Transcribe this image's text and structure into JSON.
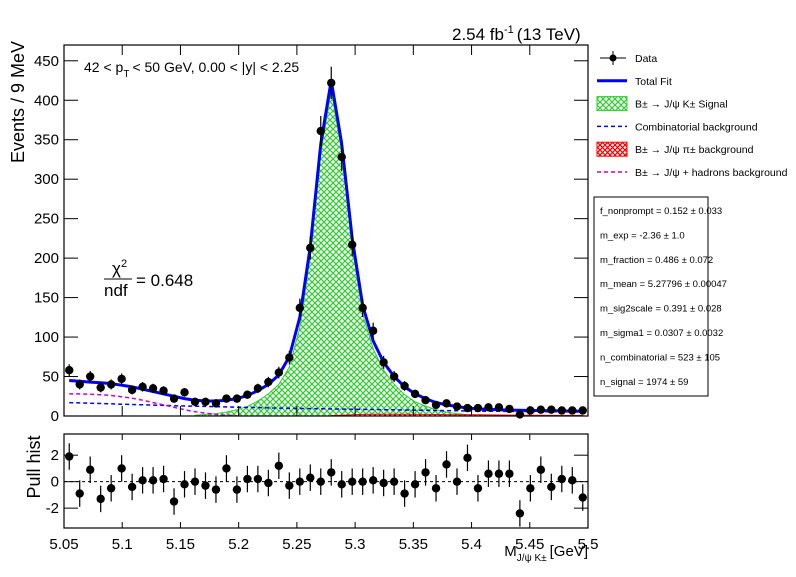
{
  "header": {
    "lumi": "2.54 fb",
    "lumi_exp": "-1",
    "energy": "(13 TeV)"
  },
  "chart_data": [
    {
      "type": "scatter",
      "ylabel": "Events / 9 MeV",
      "selection_label": {
        "text": "42 < p",
        "sub": "T",
        "rest": "< 50 GeV, 0.00 < |y| < 2.25"
      },
      "chi2_label": {
        "symbol": "χ",
        "exp": "2",
        "denominator": "ndf",
        "value": "= 0.648"
      },
      "xlim": [
        5.05,
        5.5
      ],
      "xticks": [
        5.05,
        5.1,
        5.15,
        5.2,
        5.25,
        5.3,
        5.35,
        5.4,
        5.45,
        5.5
      ],
      "ylim": [
        0,
        470
      ],
      "yticks": [
        0,
        50,
        100,
        150,
        200,
        250,
        300,
        350,
        400,
        450
      ],
      "x": [
        5.0545,
        5.0635,
        5.0725,
        5.0815,
        5.0905,
        5.0995,
        5.1085,
        5.1175,
        5.1265,
        5.1355,
        5.1445,
        5.1535,
        5.1625,
        5.1715,
        5.1805,
        5.1895,
        5.1985,
        5.2075,
        5.2165,
        5.2255,
        5.2345,
        5.2435,
        5.2525,
        5.2615,
        5.2705,
        5.2795,
        5.2885,
        5.2975,
        5.3065,
        5.3155,
        5.3245,
        5.3335,
        5.3425,
        5.3515,
        5.3605,
        5.3695,
        5.3785,
        5.3875,
        5.3965,
        5.4055,
        5.4145,
        5.4235,
        5.4325,
        5.4415,
        5.4505,
        5.4595,
        5.4685,
        5.4775,
        5.4865,
        5.4955
      ],
      "series": [
        {
          "name": "Data",
          "style": "points",
          "color": "#000000",
          "values": [
            58,
            40,
            50,
            36,
            40,
            47,
            33,
            37,
            35,
            32,
            22,
            30,
            18,
            18,
            16,
            22,
            22,
            27,
            35,
            43,
            55,
            74,
            137,
            213,
            361,
            422,
            328,
            217,
            137,
            108,
            68,
            50,
            38,
            28,
            20,
            14,
            16,
            12,
            10,
            10,
            11,
            11,
            9,
            2,
            7,
            8,
            8,
            7,
            7,
            7
          ],
          "errors": [
            7.6,
            6.3,
            7.1,
            6,
            6.3,
            6.9,
            5.7,
            6.1,
            5.9,
            5.7,
            4.7,
            5.5,
            4.2,
            4.2,
            4,
            4.7,
            4.7,
            5.2,
            5.9,
            6.6,
            7.4,
            8.6,
            11.7,
            14.6,
            19,
            20.5,
            18.1,
            14.7,
            11.7,
            10.4,
            8.2,
            7.1,
            6.2,
            5.3,
            4.5,
            3.7,
            4,
            3.5,
            3.2,
            3.2,
            3.3,
            3.3,
            3,
            1.4,
            2.6,
            2.8,
            2.8,
            2.6,
            2.6,
            2.6
          ]
        },
        {
          "name": "Total Fit",
          "style": "line",
          "color": "#0000ff",
          "values": [
            45,
            44,
            43,
            42,
            41,
            39,
            37,
            34,
            31,
            28,
            25,
            22,
            20,
            19,
            19,
            20,
            22,
            26,
            32,
            40,
            52,
            75,
            125,
            215,
            345,
            425,
            345,
            225,
            140,
            95,
            68,
            50,
            37,
            28,
            22,
            17,
            14,
            12,
            10,
            9,
            8.5,
            8,
            7.5,
            7.2,
            7,
            6.8,
            6.6,
            6.4,
            6.2,
            6
          ]
        },
        {
          "name": "B± → J/ψ K± Signal",
          "style": "hatch-green",
          "color": "#33cc33",
          "values": [
            null,
            null,
            null,
            null,
            null,
            null,
            null,
            null,
            null,
            null,
            null,
            null,
            1,
            2,
            3,
            5,
            8,
            12,
            19,
            28,
            40,
            62,
            112,
            202,
            333,
            413,
            334,
            214,
            129,
            85,
            58,
            40,
            27,
            18,
            12.5,
            8,
            5,
            3,
            1.5,
            0.8,
            0.5,
            0.3,
            0.2,
            0.1,
            0,
            0,
            0,
            0,
            0,
            0
          ]
        },
        {
          "name": "Combinatorial background",
          "style": "dashed",
          "color": "#0000ff",
          "values": [
            17,
            16.6,
            16.2,
            15.8,
            15.4,
            15,
            14.6,
            14.2,
            13.8,
            13.4,
            13,
            12.7,
            12.4,
            12.1,
            11.8,
            11.5,
            11.2,
            10.9,
            10.6,
            10.3,
            10,
            9.8,
            9.6,
            9.4,
            9.2,
            9,
            8.8,
            8.6,
            8.4,
            8.2,
            8,
            7.8,
            7.6,
            7.4,
            7.2,
            7,
            6.8,
            6.6,
            6.4,
            6.2,
            6,
            5.9,
            5.8,
            5.7,
            5.6,
            5.5,
            5.4,
            5.3,
            5.2,
            5.1
          ]
        },
        {
          "name": "B± → J/ψ π± background",
          "style": "hatch-red",
          "color": "#ff0000",
          "values": [
            null,
            null,
            null,
            null,
            null,
            null,
            null,
            null,
            null,
            null,
            null,
            null,
            null,
            null,
            null,
            null,
            null,
            null,
            null,
            null,
            null,
            null,
            null,
            null,
            null,
            0.5,
            1,
            1.5,
            2,
            2.2,
            2.3,
            2.3,
            2.2,
            2.1,
            2,
            1.9,
            1.8,
            1.7,
            1.6,
            1.5,
            1.4,
            1.3,
            1.2,
            1.1,
            1,
            0.9,
            0.8,
            0.8,
            0.7,
            0.7
          ]
        },
        {
          "name": "B± → J/ψ + hadrons background",
          "style": "dashed",
          "color": "#cc00cc",
          "values": [
            28,
            28,
            27.5,
            27,
            26,
            24.5,
            22.5,
            20,
            17,
            14,
            11,
            8,
            5.5,
            3.5,
            2,
            1,
            0.3,
            null,
            null,
            null,
            null,
            null,
            null,
            null,
            null,
            null,
            null,
            null,
            null,
            null,
            null,
            null,
            null,
            null,
            null,
            null,
            null,
            null,
            null,
            null,
            null,
            null,
            null,
            null,
            null,
            null,
            null,
            null,
            null,
            null
          ]
        }
      ]
    },
    {
      "type": "scatter",
      "ylabel": "Pull hist",
      "xlabel": {
        "main": "M",
        "sub": "J/ψ K±",
        "unit": "[GeV]"
      },
      "xlim": [
        5.05,
        5.5
      ],
      "xticks": [
        5.05,
        5.1,
        5.15,
        5.2,
        5.25,
        5.3,
        5.35,
        5.4,
        5.45,
        5.5
      ],
      "ylim": [
        -3.5,
        3.6
      ],
      "yticks": [
        -2,
        0,
        2
      ],
      "x": [
        5.0545,
        5.0635,
        5.0725,
        5.0815,
        5.0905,
        5.0995,
        5.1085,
        5.1175,
        5.1265,
        5.1355,
        5.1445,
        5.1535,
        5.1625,
        5.1715,
        5.1805,
        5.1895,
        5.1985,
        5.2075,
        5.2165,
        5.2255,
        5.2345,
        5.2435,
        5.2525,
        5.2615,
        5.2705,
        5.2795,
        5.2885,
        5.2975,
        5.3065,
        5.3155,
        5.3245,
        5.3335,
        5.3425,
        5.3515,
        5.3605,
        5.3695,
        5.3785,
        5.3875,
        5.3965,
        5.4055,
        5.4145,
        5.4235,
        5.4325,
        5.4415,
        5.4505,
        5.4595,
        5.4685,
        5.4775,
        5.4865,
        5.4955
      ],
      "series": [
        {
          "style": "points",
          "color": "#000000",
          "values": [
            1.9,
            -0.9,
            0.9,
            -1.3,
            -0.5,
            1.0,
            -0.4,
            0.1,
            0.1,
            0.2,
            -1.5,
            -0.2,
            0,
            -0.3,
            -0.6,
            1.0,
            -0.6,
            0.2,
            0.2,
            -0.1,
            1.2,
            -0.3,
            0,
            0.3,
            0,
            0.7,
            -0.2,
            0,
            0,
            0.1,
            -0.1,
            0,
            -0.9,
            -0.2,
            0.7,
            -0.5,
            1.3,
            0,
            1.8,
            -0.5,
            0.6,
            0.6,
            0.6,
            -2.4,
            -0.5,
            0.9,
            -0.4,
            0.2,
            0.1,
            -1.2
          ],
          "errors": [
            1,
            1,
            1,
            1,
            1,
            1,
            1,
            1,
            1,
            1,
            1,
            1,
            1,
            1,
            1,
            1,
            1,
            1,
            1,
            1,
            1,
            1,
            1,
            1,
            1,
            1,
            1,
            1,
            1,
            1,
            1,
            1,
            1,
            1,
            1,
            1,
            1,
            1,
            1,
            1,
            1,
            1,
            1,
            1,
            1,
            1,
            1,
            1,
            1,
            1
          ]
        }
      ]
    }
  ],
  "fit_params": [
    "f_nonprompt =  0.152 ± 0.033",
    "m_exp = -2.36 ± 1.0",
    "m_fraction =  0.486 ± 0.072",
    "m_mean =  5.27796 ± 0.00047",
    "m_sig2scale =  0.391 ± 0.028",
    "m_sigma1 =  0.0307 ± 0.0032",
    "n_combinatorial =  523 ± 105",
    "n_signal =  1974 ± 59"
  ]
}
